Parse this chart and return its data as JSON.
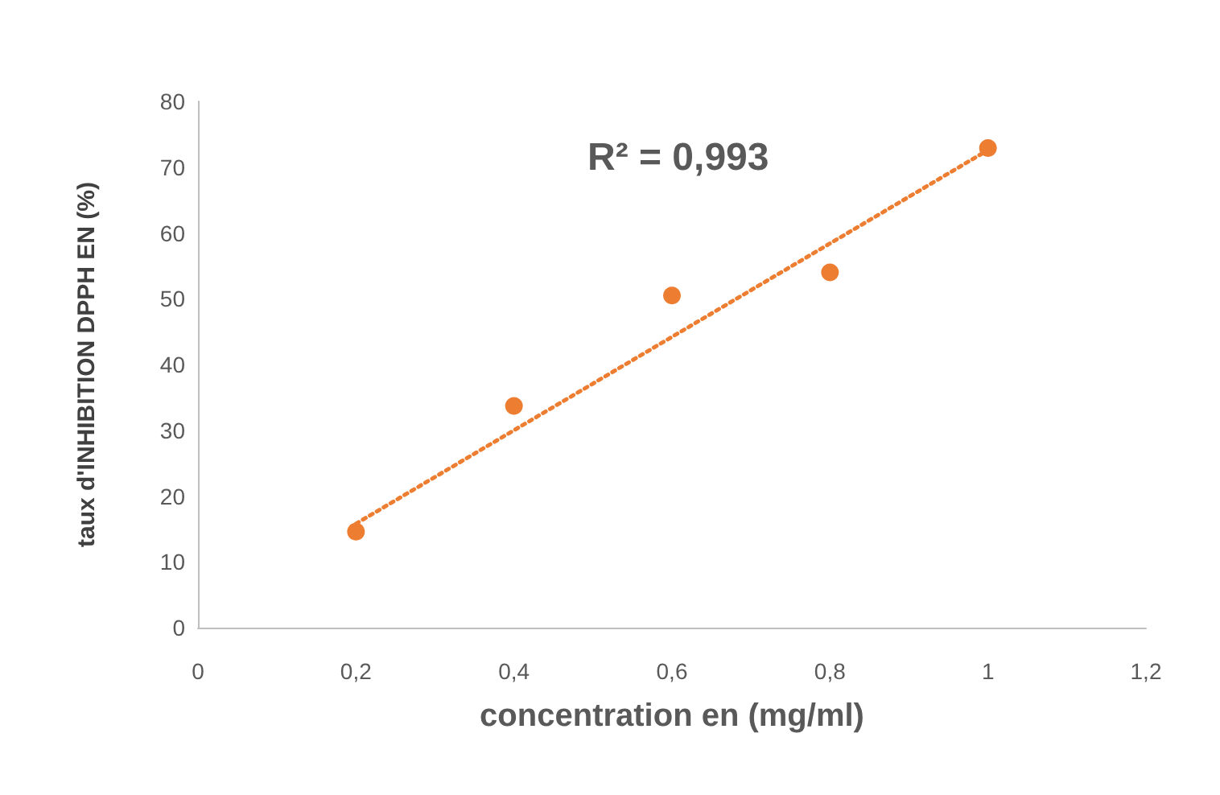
{
  "chart_data": {
    "type": "scatter",
    "xlabel": "concentration en (mg/ml)",
    "ylabel": "taux d'INHIBITION DPPH EN (%)",
    "annotations": [
      "R² = 0,993"
    ],
    "x": [
      0.2,
      0.4,
      0.6,
      0.8,
      1.0
    ],
    "series": [
      {
        "color": "#ed7d31",
        "values": [
          14.6,
          33.7,
          50.5,
          54.0,
          72.9
        ],
        "marker": "circle"
      },
      {
        "type": "line",
        "color": "#ed7d31",
        "x": [
          0.2,
          1.0
        ],
        "values": [
          15.8,
          72.6
        ],
        "line_style": "dotted",
        "marker": "none"
      }
    ],
    "xlim": [
      0,
      1.2
    ],
    "xticks": [
      0,
      {
        "value": 0.2,
        "label": "0,2"
      },
      {
        "value": 0.4,
        "label": "0,4"
      },
      {
        "value": 0.6,
        "label": "0,6"
      },
      {
        "value": 0.8,
        "label": "0,8"
      },
      1,
      {
        "value": 1.2,
        "label": "1,2"
      }
    ],
    "ylim": [
      0,
      80
    ],
    "yticks": [
      0,
      10,
      20,
      30,
      40,
      50,
      60,
      70,
      80
    ],
    "grid": false
  }
}
